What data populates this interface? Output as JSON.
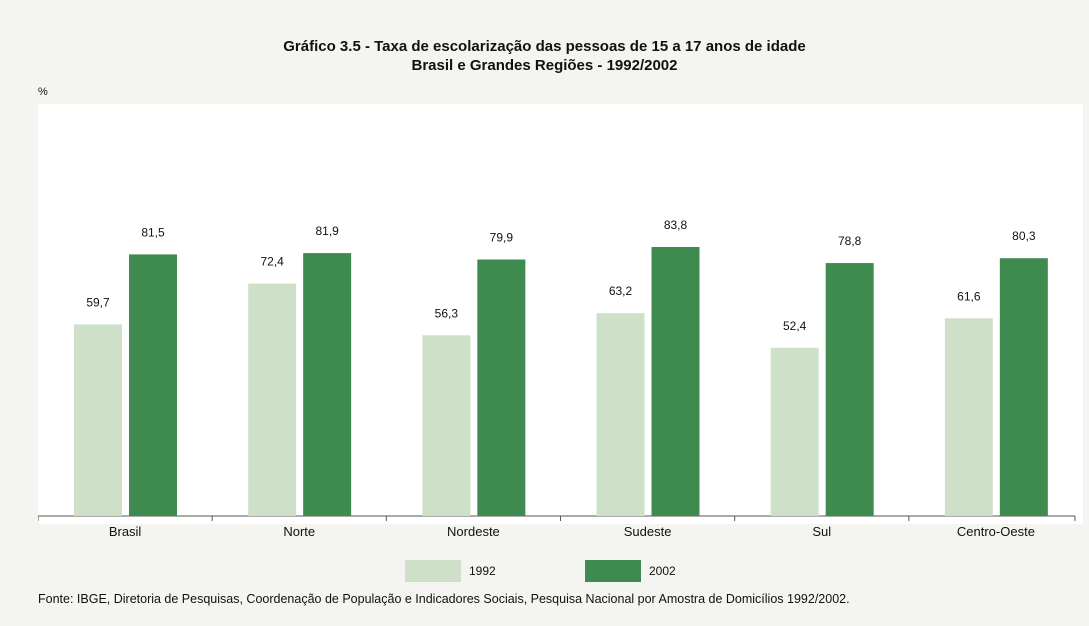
{
  "chart_data": {
    "type": "bar",
    "title": "Gráfico 3.5 - Taxa de escolarização das pessoas de 15 a 17 anos de idade",
    "subtitle": "Brasil e Grandes Regiões - 1992/2002",
    "ylabel": "%",
    "xlabel": "",
    "categories": [
      "Brasil",
      "Norte",
      "Nordeste",
      "Sudeste",
      "Sul",
      "Centro-Oeste"
    ],
    "series": [
      {
        "name": "1992",
        "color": "#cfe0c9",
        "values": [
          59.7,
          72.4,
          56.3,
          63.2,
          52.4,
          61.6
        ],
        "value_labels": [
          "59,7",
          "72,4",
          "56,3",
          "63,2",
          "52,4",
          "61,6"
        ]
      },
      {
        "name": "2002",
        "color": "#3f8a4f",
        "values": [
          81.5,
          81.9,
          79.9,
          83.8,
          78.8,
          80.3
        ],
        "value_labels": [
          "81,5",
          "81,9",
          "79,9",
          "83,8",
          "78,8",
          "80,3"
        ]
      }
    ],
    "ylim": [
      0,
      100
    ],
    "grid": false,
    "legend_position": "bottom"
  },
  "source": "Fonte: IBGE, Diretoria de Pesquisas, Coordenação de População e Indicadores Sociais, Pesquisa Nacional por Amostra de Domicílios 1992/2002."
}
